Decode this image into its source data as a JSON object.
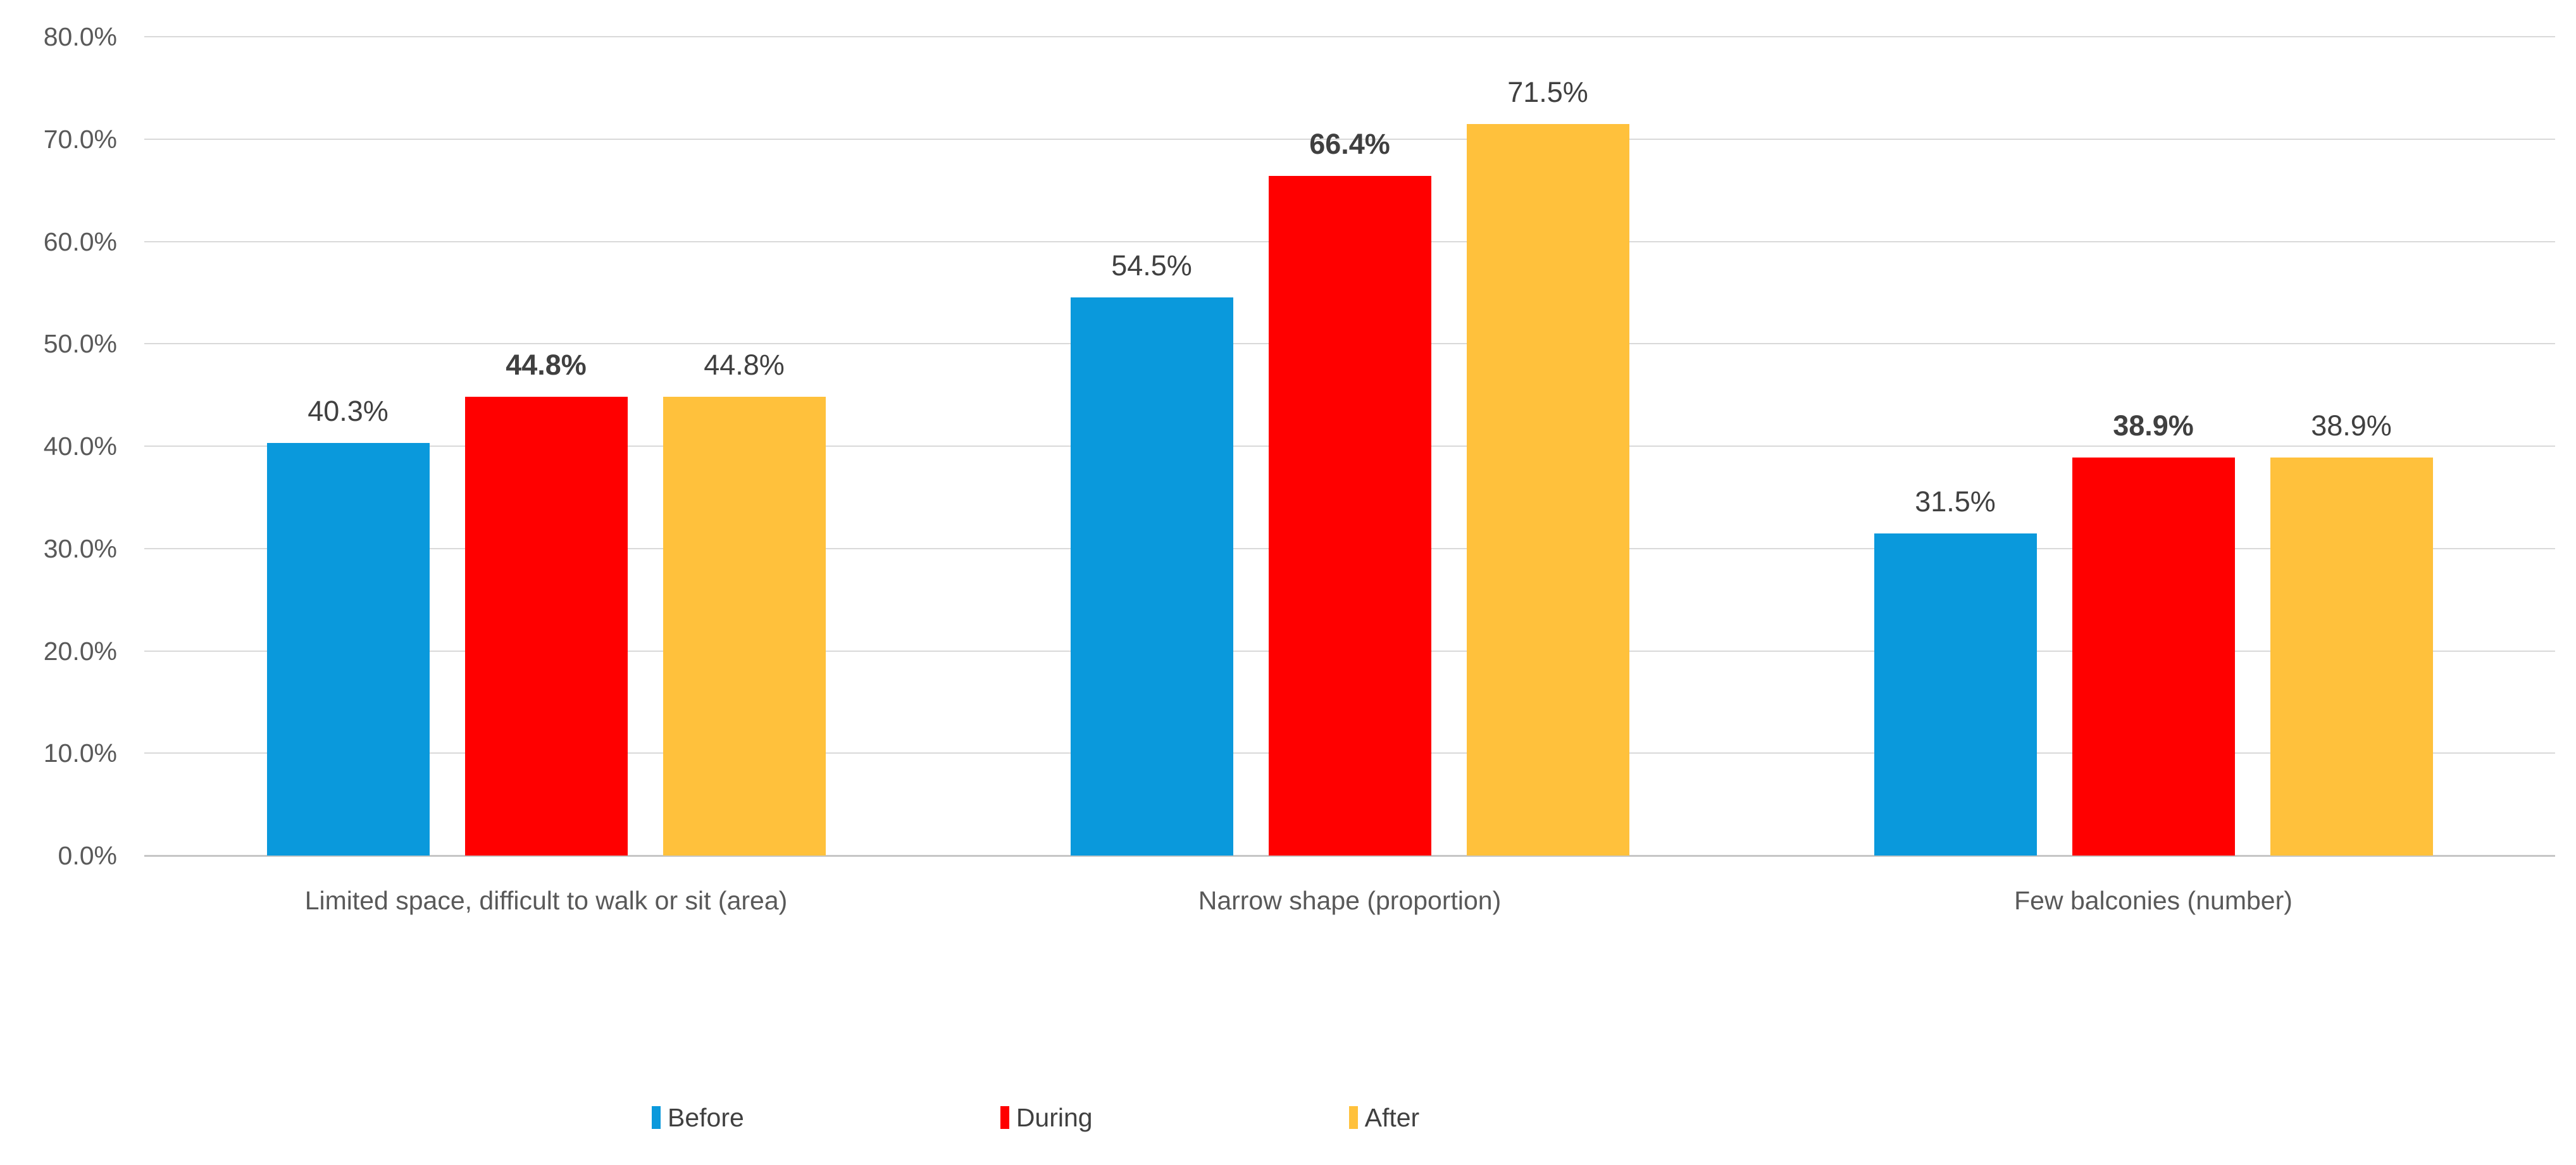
{
  "chart_data": {
    "type": "bar",
    "title": "",
    "categories": [
      "Limited space, difficult to walk or sit (area)",
      "Narrow shape (proportion)",
      "Few balconies (number)"
    ],
    "series": [
      {
        "name": "Before",
        "color": "#0A99DC",
        "values": [
          40.3,
          54.5,
          31.5
        ],
        "data_labels": [
          "40.3%",
          "54.5%",
          "31.5%"
        ],
        "label_bold": false
      },
      {
        "name": "During",
        "color": "#FF0000",
        "values": [
          44.8,
          66.4,
          38.9
        ],
        "data_labels": [
          "44.8%",
          "66.4%",
          "38.9%"
        ],
        "label_bold": true
      },
      {
        "name": "After",
        "color": "#FFC13C",
        "values": [
          44.8,
          71.5,
          38.9
        ],
        "data_labels": [
          "44.8%",
          "71.5%",
          "38.9%"
        ],
        "label_bold": false
      }
    ],
    "ylim": [
      0,
      80
    ],
    "ytick_labels": [
      "0.0%",
      "10.0%",
      "20.0%",
      "30.0%",
      "40.0%",
      "50.0%",
      "60.0%",
      "70.0%",
      "80.0%"
    ],
    "grid": true,
    "legend_position": "bottom",
    "background_color": "#FFFFFF",
    "gridline_color": "#D9D9D9",
    "axis_line_color": "#C6C6C6",
    "tick_label_color": "#595959",
    "data_label_color": "#404040"
  }
}
